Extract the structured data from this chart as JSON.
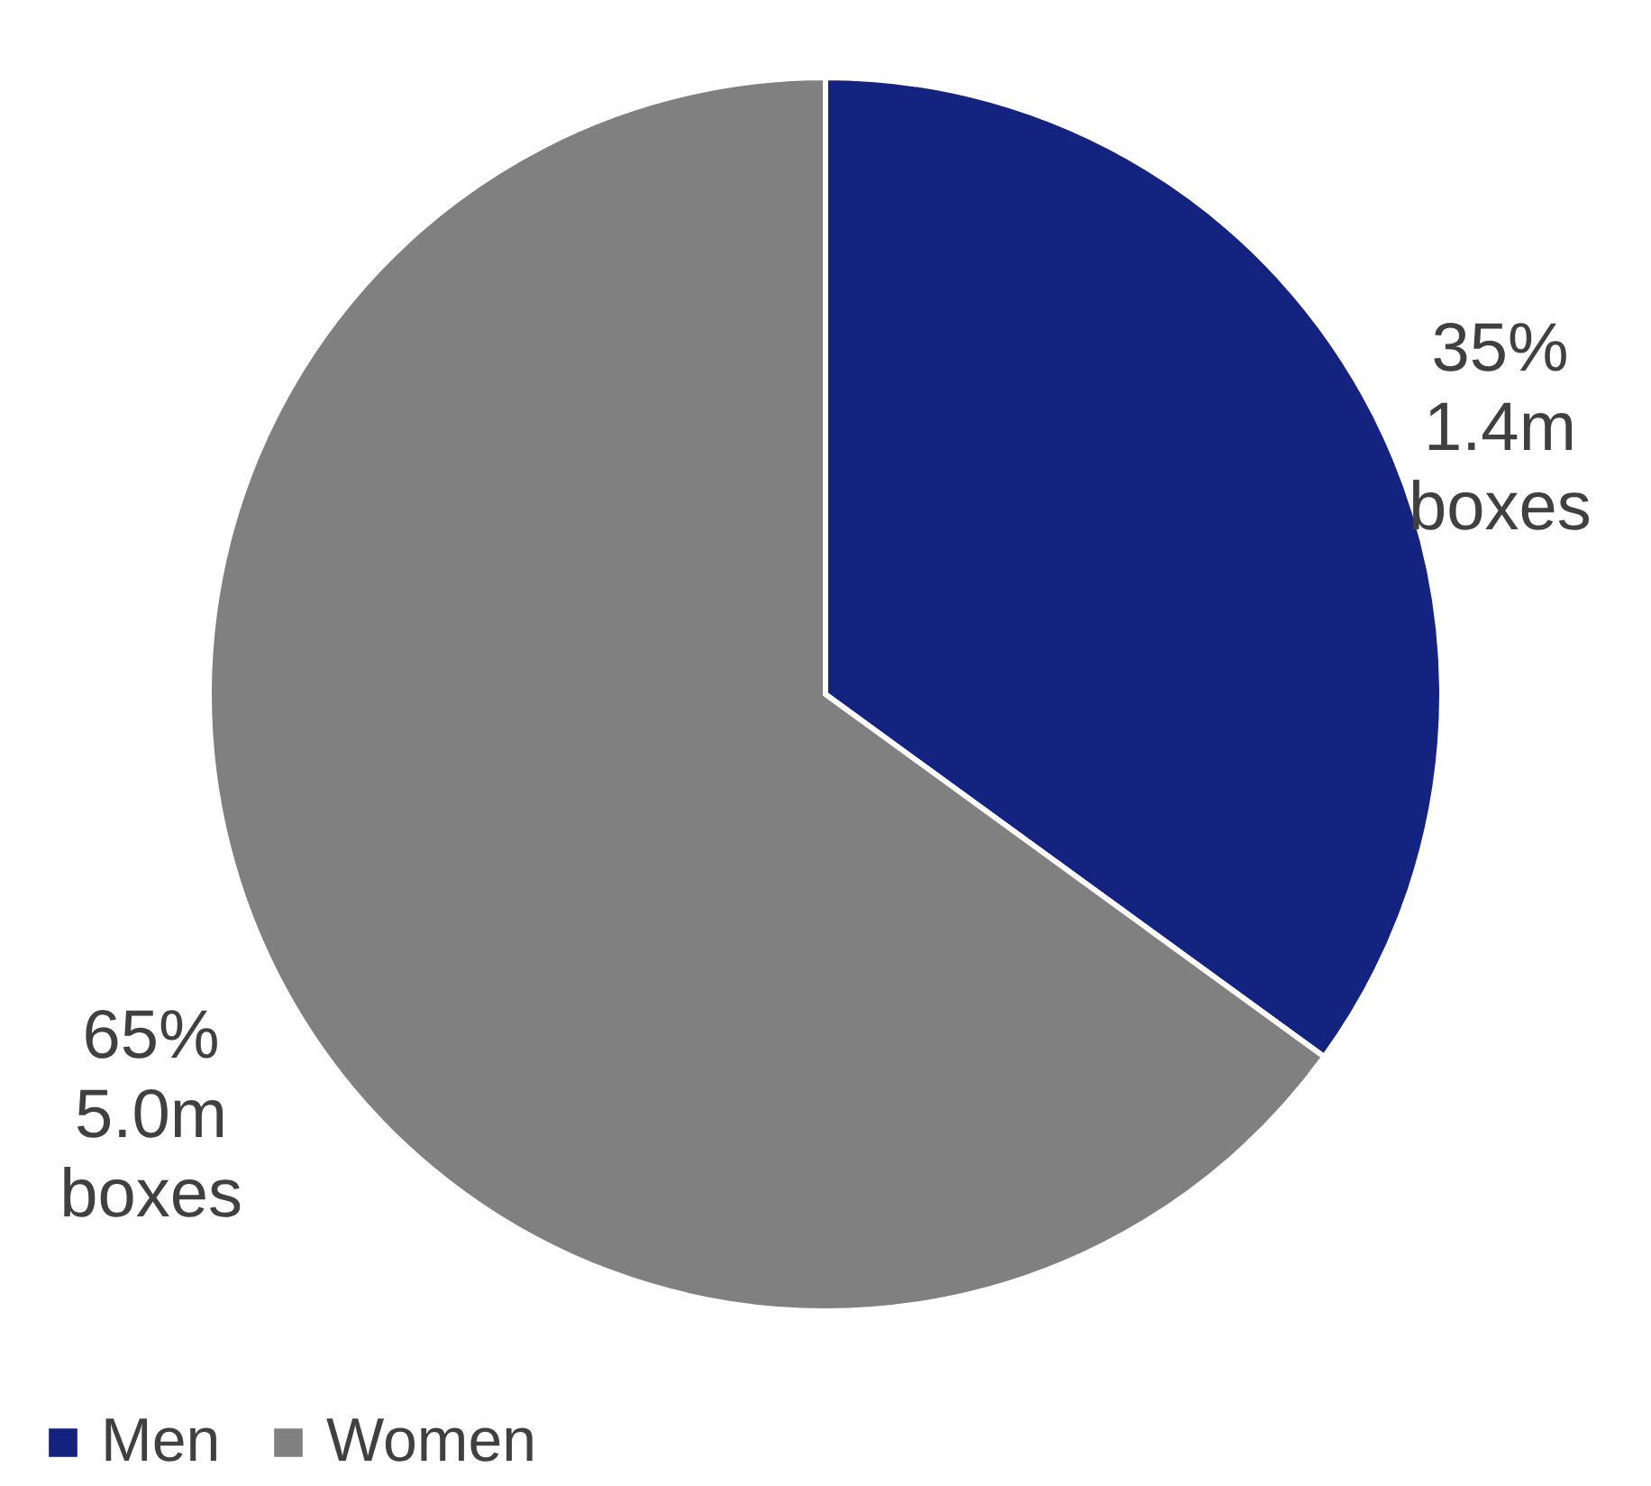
{
  "chart_data": {
    "type": "pie",
    "categories": [
      "Men",
      "Women"
    ],
    "values": [
      35,
      65
    ],
    "colors": [
      "#13237f",
      "#808080"
    ],
    "value_labels": [
      "35%\n1.4m\nboxes",
      "65%\n5.0m\nboxes"
    ],
    "legend": "bottom"
  }
}
